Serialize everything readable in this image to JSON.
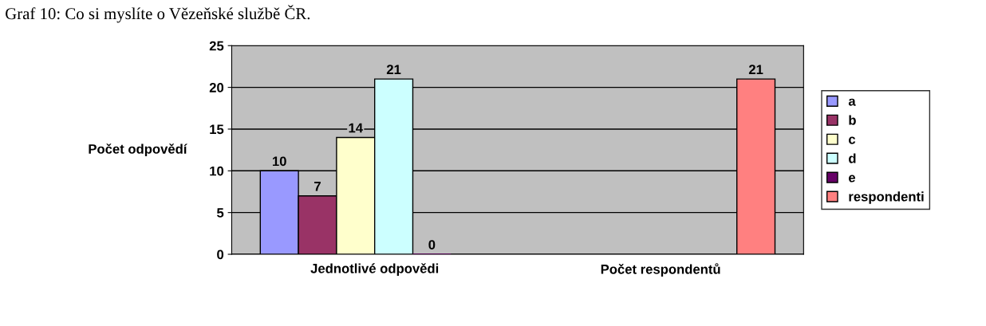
{
  "chart_data": {
    "type": "bar",
    "title": "Graf 10: Co si myslíte o Vězeňské službě ČR.",
    "categories": [
      "Jednotlivé odpovědi",
      "Počet respondentů"
    ],
    "series": [
      {
        "name": "a",
        "color": "#9999ff",
        "values": [
          10,
          null
        ]
      },
      {
        "name": "b",
        "color": "#993366",
        "values": [
          7,
          null
        ]
      },
      {
        "name": "c",
        "color": "#ffffcc",
        "values": [
          14,
          null
        ]
      },
      {
        "name": "d",
        "color": "#ccffff",
        "values": [
          21,
          null
        ]
      },
      {
        "name": "e",
        "color": "#660066",
        "values": [
          0,
          null
        ]
      },
      {
        "name": "respondenti",
        "color": "#ff8080",
        "values": [
          null,
          21
        ]
      }
    ],
    "ylabel": "Počet odpovědí",
    "ylim": [
      0,
      25
    ],
    "yticks": [
      0,
      5,
      10,
      15,
      20,
      25
    ],
    "grid": "y",
    "legend": "right",
    "data_labels": true
  }
}
